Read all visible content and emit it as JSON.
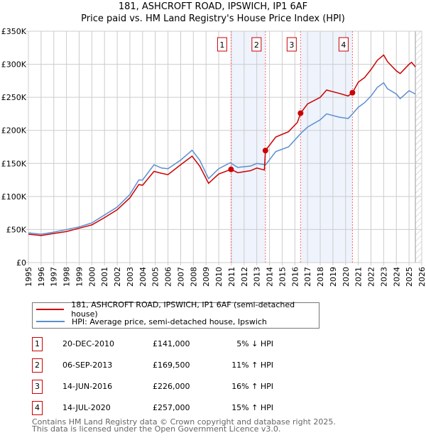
{
  "title": "181, ASHCROFT ROAD, IPSWICH, IP1 6AF",
  "subtitle": "Price paid vs. HM Land Registry's House Price Index (HPI)",
  "chart_data": {
    "type": "line",
    "ylim": [
      0,
      350000
    ],
    "xlim": [
      1995,
      2026
    ],
    "yticks": [
      {
        "v": 0,
        "l": "£0"
      },
      {
        "v": 50000,
        "l": "£50K"
      },
      {
        "v": 100000,
        "l": "£100K"
      },
      {
        "v": 150000,
        "l": "£150K"
      },
      {
        "v": 200000,
        "l": "£200K"
      },
      {
        "v": 250000,
        "l": "£250K"
      },
      {
        "v": 300000,
        "l": "£300K"
      },
      {
        "v": 350000,
        "l": "£350K"
      }
    ],
    "xticks": [
      "1995",
      "1996",
      "1997",
      "1998",
      "1999",
      "2000",
      "2001",
      "2002",
      "2003",
      "2004",
      "2005",
      "2006",
      "2007",
      "2008",
      "2009",
      "2010",
      "2011",
      "2012",
      "2013",
      "2014",
      "2015",
      "2016",
      "2017",
      "2018",
      "2019",
      "2020",
      "2021",
      "2022",
      "2023",
      "2024",
      "2025",
      "2026"
    ],
    "series": [
      {
        "name": "181, ASHCROFT ROAD, IPSWICH, IP1 6AF (semi-detached house)",
        "color": "#cc0000",
        "x": [
          1995,
          1996,
          1997,
          1998,
          1999,
          2000,
          2001,
          2002,
          2003,
          2003.7,
          2004,
          2004.9,
          2005.5,
          2006,
          2007,
          2007.9,
          2008.5,
          2009.2,
          2010,
          2010.97,
          2011.5,
          2012.5,
          2013,
          2013.6,
          2013.68,
          2014.5,
          2015.5,
          2016.2,
          2016.45,
          2017,
          2018,
          2018.5,
          2019.5,
          2020.2,
          2020.54,
          2021,
          2021.5,
          2022,
          2022.5,
          2023,
          2023.3,
          2024,
          2024.3,
          2025,
          2025.2,
          2025.5
        ],
        "y": [
          43000,
          41000,
          44000,
          47000,
          52000,
          57000,
          68000,
          80000,
          98000,
          118000,
          117000,
          138000,
          135000,
          133000,
          148000,
          161000,
          146000,
          120000,
          134000,
          141000,
          136000,
          139000,
          143000,
          140000,
          169500,
          190000,
          198000,
          212000,
          226000,
          240000,
          250000,
          261000,
          256000,
          252000,
          257000,
          273000,
          280000,
          292000,
          306000,
          314000,
          304000,
          290000,
          286000,
          300000,
          303000,
          296000
        ]
      },
      {
        "name": "HPI: Average price, semi-detached house, Ipswich",
        "color": "#5b8fd0",
        "x": [
          1995,
          1996,
          1997,
          1998,
          1999,
          2000,
          2001,
          2002,
          2003,
          2003.7,
          2004,
          2004.9,
          2005.5,
          2006,
          2007,
          2007.9,
          2008.5,
          2009.2,
          2010,
          2010.9,
          2011.5,
          2012.5,
          2013,
          2013.7,
          2014.5,
          2015.5,
          2016.5,
          2017,
          2018,
          2018.5,
          2019.5,
          2020.2,
          2020.5,
          2021,
          2021.5,
          2022,
          2022.5,
          2023,
          2023.3,
          2024,
          2024.3,
          2025,
          2025.5
        ],
        "y": [
          45000,
          43000,
          46000,
          50000,
          54000,
          60000,
          72000,
          84000,
          103000,
          125000,
          125000,
          148000,
          143000,
          142000,
          155000,
          170000,
          155000,
          127000,
          142000,
          151000,
          144000,
          146000,
          150000,
          148000,
          168000,
          175000,
          196000,
          205000,
          216000,
          225000,
          220000,
          218000,
          224000,
          235000,
          242000,
          252000,
          265000,
          272000,
          263000,
          255000,
          248000,
          260000,
          255000
        ]
      }
    ],
    "sales": [
      {
        "n": "1",
        "x": 2010.97,
        "date": "20-DEC-2010",
        "price": "£141,000",
        "value": 141000,
        "hpi": "5% ↓ HPI"
      },
      {
        "n": "2",
        "x": 2013.68,
        "date": "06-SEP-2013",
        "price": "£169,500",
        "value": 169500,
        "hpi": "11% ↑ HPI"
      },
      {
        "n": "3",
        "x": 2016.45,
        "date": "14-JUN-2016",
        "price": "£226,000",
        "value": 226000,
        "hpi": "16% ↑ HPI"
      },
      {
        "n": "4",
        "x": 2020.54,
        "date": "14-JUL-2020",
        "price": "£257,000",
        "value": 257000,
        "hpi": "15% ↑ HPI"
      }
    ],
    "forecast_start": 2025.5
  },
  "footer": [
    "Contains HM Land Registry data © Crown copyright and database right 2025.",
    "This data is licensed under the Open Government Licence v3.0."
  ]
}
